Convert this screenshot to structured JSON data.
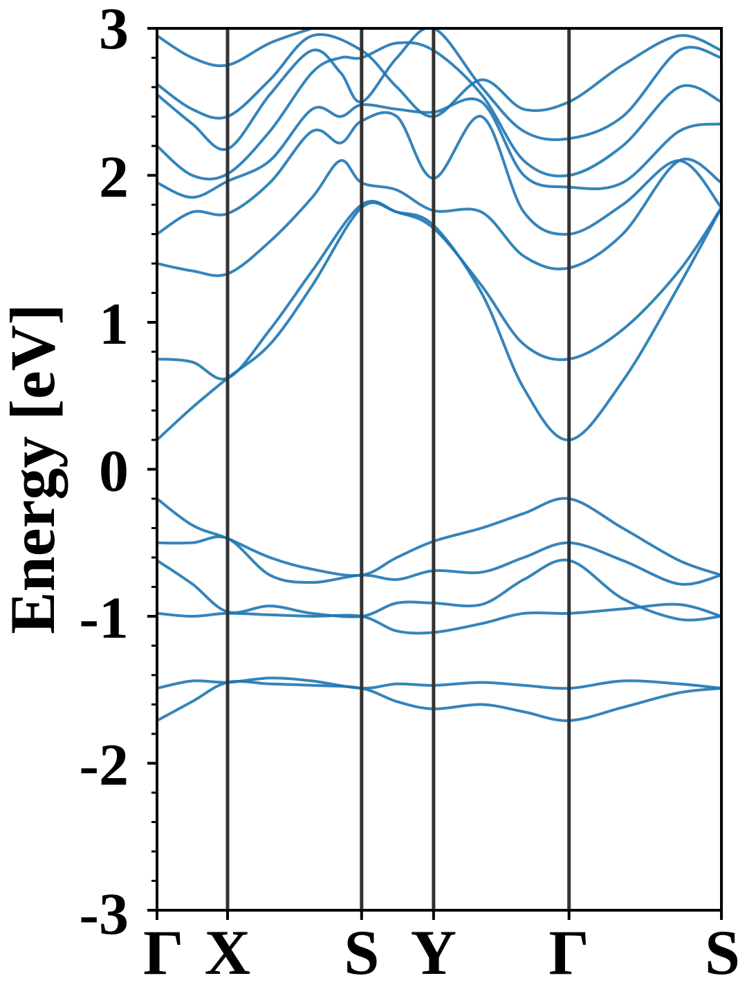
{
  "chart_data": {
    "type": "line",
    "title": "",
    "ylabel": "Energy [eV]",
    "xlabel": "",
    "ylim": [
      -3,
      3
    ],
    "yticks": [
      "3",
      "2",
      "1",
      "0",
      "-1",
      "-2",
      "-3"
    ],
    "ytick_values": [
      3,
      2,
      1,
      0,
      -1,
      -2,
      -3
    ],
    "kpath": [
      {
        "label": "Γ",
        "x": 0.0
      },
      {
        "label": "X",
        "x": 0.5
      },
      {
        "label": "S",
        "x": 1.45
      },
      {
        "label": "Y",
        "x": 1.96
      },
      {
        "label": "Γ",
        "x": 2.92
      },
      {
        "label": "S",
        "x": 4.0
      }
    ],
    "line_color": "#1f77b4",
    "divider_color": "#333333",
    "grid": false,
    "series": [
      {
        "points": [
          [
            0,
            0.2
          ],
          [
            0.25,
            0.42
          ],
          [
            0.5,
            0.62
          ],
          [
            0.8,
            0.85
          ],
          [
            1.1,
            1.25
          ],
          [
            1.45,
            1.78
          ],
          [
            1.7,
            1.75
          ],
          [
            1.96,
            1.66
          ],
          [
            2.3,
            1.2
          ],
          [
            2.6,
            0.55
          ],
          [
            2.92,
            0.2
          ],
          [
            3.3,
            0.6
          ],
          [
            3.7,
            1.25
          ],
          [
            4.0,
            1.78
          ]
        ]
      },
      {
        "points": [
          [
            0,
            0.75
          ],
          [
            0.25,
            0.73
          ],
          [
            0.5,
            0.62
          ],
          [
            0.8,
            0.95
          ],
          [
            1.1,
            1.35
          ],
          [
            1.45,
            1.8
          ],
          [
            1.7,
            1.75
          ],
          [
            1.96,
            1.64
          ],
          [
            2.3,
            1.25
          ],
          [
            2.6,
            0.85
          ],
          [
            2.92,
            0.75
          ],
          [
            3.3,
            0.95
          ],
          [
            3.7,
            1.35
          ],
          [
            4.0,
            1.78
          ]
        ]
      },
      {
        "points": [
          [
            0,
            1.4
          ],
          [
            0.25,
            1.35
          ],
          [
            0.5,
            1.33
          ],
          [
            0.8,
            1.55
          ],
          [
            1.1,
            1.85
          ],
          [
            1.3,
            2.1
          ],
          [
            1.45,
            1.95
          ],
          [
            1.7,
            1.9
          ],
          [
            1.96,
            1.76
          ],
          [
            2.3,
            1.75
          ],
          [
            2.6,
            1.45
          ],
          [
            2.92,
            1.37
          ],
          [
            3.3,
            1.6
          ],
          [
            3.7,
            2.1
          ],
          [
            4.0,
            1.95
          ]
        ]
      },
      {
        "points": [
          [
            0,
            1.6
          ],
          [
            0.25,
            1.75
          ],
          [
            0.5,
            1.74
          ],
          [
            0.8,
            1.95
          ],
          [
            1.1,
            2.3
          ],
          [
            1.3,
            2.22
          ],
          [
            1.45,
            2.37
          ],
          [
            1.7,
            2.4
          ],
          [
            1.96,
            1.98
          ],
          [
            2.3,
            2.4
          ],
          [
            2.6,
            1.75
          ],
          [
            2.92,
            1.6
          ],
          [
            3.3,
            1.8
          ],
          [
            3.7,
            2.1
          ],
          [
            4.0,
            1.78
          ]
        ]
      },
      {
        "points": [
          [
            0,
            1.95
          ],
          [
            0.25,
            1.85
          ],
          [
            0.5,
            1.96
          ],
          [
            0.8,
            2.1
          ],
          [
            1.1,
            2.45
          ],
          [
            1.3,
            2.4
          ],
          [
            1.45,
            2.48
          ],
          [
            1.7,
            2.45
          ],
          [
            1.96,
            2.43
          ],
          [
            2.3,
            2.5
          ],
          [
            2.6,
            2.0
          ],
          [
            2.92,
            1.92
          ],
          [
            3.3,
            1.95
          ],
          [
            3.7,
            2.3
          ],
          [
            4.0,
            2.35
          ]
        ]
      },
      {
        "points": [
          [
            0,
            2.2
          ],
          [
            0.25,
            2.0
          ],
          [
            0.5,
            2.01
          ],
          [
            0.8,
            2.3
          ],
          [
            1.1,
            2.7
          ],
          [
            1.3,
            2.8
          ],
          [
            1.45,
            2.8
          ],
          [
            1.7,
            2.9
          ],
          [
            1.96,
            2.85
          ],
          [
            2.3,
            2.55
          ],
          [
            2.6,
            2.1
          ],
          [
            2.92,
            2.0
          ],
          [
            3.3,
            2.2
          ],
          [
            3.7,
            2.6
          ],
          [
            4.0,
            2.5
          ]
        ]
      },
      {
        "points": [
          [
            0,
            2.55
          ],
          [
            0.25,
            2.35
          ],
          [
            0.5,
            2.18
          ],
          [
            0.8,
            2.55
          ],
          [
            1.1,
            2.85
          ],
          [
            1.3,
            2.7
          ],
          [
            1.45,
            2.5
          ],
          [
            1.7,
            2.8
          ],
          [
            1.96,
            3.0
          ],
          [
            2.3,
            2.6
          ],
          [
            2.6,
            2.3
          ],
          [
            2.92,
            2.25
          ],
          [
            3.3,
            2.4
          ],
          [
            3.7,
            2.85
          ],
          [
            4.0,
            2.8
          ]
        ]
      },
      {
        "points": [
          [
            0,
            2.62
          ],
          [
            0.25,
            2.45
          ],
          [
            0.5,
            2.4
          ],
          [
            0.8,
            2.65
          ],
          [
            1.1,
            2.95
          ],
          [
            1.45,
            2.85
          ],
          [
            1.7,
            2.6
          ],
          [
            1.96,
            2.4
          ],
          [
            2.3,
            2.65
          ],
          [
            2.6,
            2.45
          ],
          [
            2.92,
            2.5
          ],
          [
            3.3,
            2.75
          ],
          [
            3.7,
            2.95
          ],
          [
            4.0,
            2.85
          ]
        ]
      },
      {
        "points": [
          [
            0,
            2.95
          ],
          [
            0.25,
            2.8
          ],
          [
            0.5,
            2.75
          ],
          [
            0.8,
            2.9
          ],
          [
            1.1,
            3.0
          ]
        ]
      },
      {
        "points": [
          [
            0,
            -0.2
          ],
          [
            0.25,
            -0.38
          ],
          [
            0.5,
            -0.47
          ],
          [
            0.8,
            -0.6
          ],
          [
            1.1,
            -0.68
          ],
          [
            1.45,
            -0.72
          ],
          [
            1.7,
            -0.6
          ],
          [
            1.96,
            -0.49
          ],
          [
            2.3,
            -0.4
          ],
          [
            2.6,
            -0.3
          ],
          [
            2.92,
            -0.2
          ],
          [
            3.3,
            -0.4
          ],
          [
            3.7,
            -0.62
          ],
          [
            4.0,
            -0.72
          ]
        ]
      },
      {
        "points": [
          [
            0,
            -0.5
          ],
          [
            0.25,
            -0.5
          ],
          [
            0.5,
            -0.47
          ],
          [
            0.8,
            -0.72
          ],
          [
            1.1,
            -0.77
          ],
          [
            1.45,
            -0.72
          ],
          [
            1.7,
            -0.75
          ],
          [
            1.96,
            -0.69
          ],
          [
            2.3,
            -0.7
          ],
          [
            2.6,
            -0.6
          ],
          [
            2.92,
            -0.5
          ],
          [
            3.3,
            -0.62
          ],
          [
            3.7,
            -0.78
          ],
          [
            4.0,
            -0.72
          ]
        ]
      },
      {
        "points": [
          [
            0,
            -0.62
          ],
          [
            0.25,
            -0.78
          ],
          [
            0.5,
            -0.97
          ],
          [
            0.8,
            -0.93
          ],
          [
            1.1,
            -0.98
          ],
          [
            1.45,
            -1.0
          ],
          [
            1.7,
            -0.91
          ],
          [
            1.96,
            -0.91
          ],
          [
            2.3,
            -0.92
          ],
          [
            2.6,
            -0.75
          ],
          [
            2.92,
            -0.62
          ],
          [
            3.3,
            -0.88
          ],
          [
            3.7,
            -1.02
          ],
          [
            4.0,
            -1.0
          ]
        ]
      },
      {
        "points": [
          [
            0,
            -0.98
          ],
          [
            0.25,
            -1.0
          ],
          [
            0.5,
            -0.98
          ],
          [
            0.8,
            -0.99
          ],
          [
            1.1,
            -1.0
          ],
          [
            1.45,
            -1.0
          ],
          [
            1.7,
            -1.1
          ],
          [
            1.96,
            -1.11
          ],
          [
            2.3,
            -1.05
          ],
          [
            2.6,
            -0.98
          ],
          [
            2.92,
            -0.98
          ],
          [
            3.3,
            -0.95
          ],
          [
            3.7,
            -0.92
          ],
          [
            4.0,
            -1.0
          ]
        ]
      },
      {
        "points": [
          [
            0,
            -1.49
          ],
          [
            0.25,
            -1.44
          ],
          [
            0.5,
            -1.45
          ],
          [
            0.8,
            -1.42
          ],
          [
            1.1,
            -1.44
          ],
          [
            1.45,
            -1.49
          ],
          [
            1.7,
            -1.46
          ],
          [
            1.96,
            -1.47
          ],
          [
            2.3,
            -1.45
          ],
          [
            2.6,
            -1.47
          ],
          [
            2.92,
            -1.49
          ],
          [
            3.3,
            -1.44
          ],
          [
            3.7,
            -1.46
          ],
          [
            4.0,
            -1.49
          ]
        ]
      },
      {
        "points": [
          [
            0,
            -1.71
          ],
          [
            0.25,
            -1.58
          ],
          [
            0.5,
            -1.45
          ],
          [
            0.8,
            -1.46
          ],
          [
            1.1,
            -1.47
          ],
          [
            1.45,
            -1.49
          ],
          [
            1.7,
            -1.58
          ],
          [
            1.96,
            -1.63
          ],
          [
            2.3,
            -1.6
          ],
          [
            2.6,
            -1.65
          ],
          [
            2.92,
            -1.71
          ],
          [
            3.3,
            -1.62
          ],
          [
            3.7,
            -1.52
          ],
          [
            4.0,
            -1.49
          ]
        ]
      }
    ]
  }
}
